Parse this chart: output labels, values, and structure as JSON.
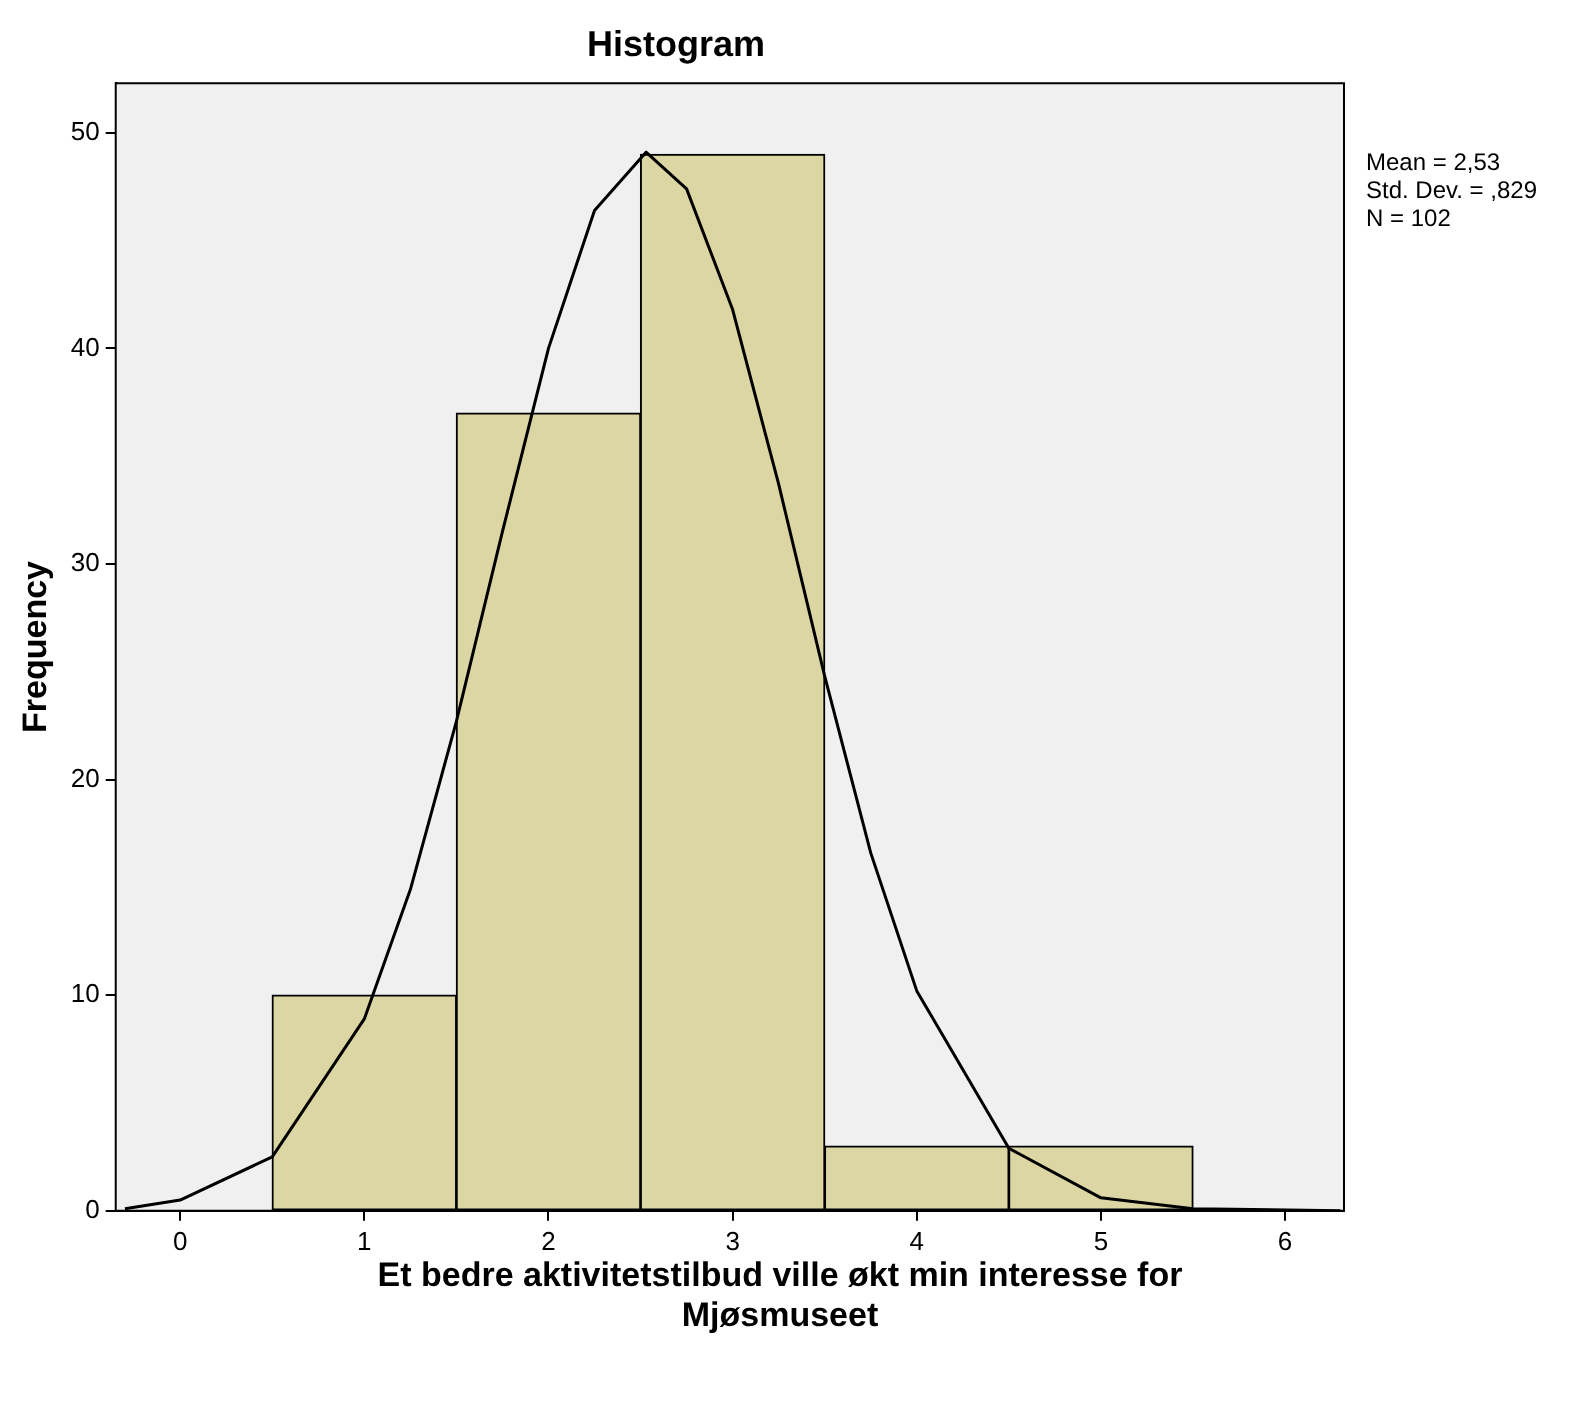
{
  "chart_data": {
    "type": "histogram",
    "title": "Histogram",
    "xlabel": "Et bedre aktivitetstilbud ville økt min interesse for Mjøsmuseet",
    "ylabel": "Frequency",
    "bins": [
      0.5,
      1.5,
      2.5,
      3.5,
      4.5,
      5.5
    ],
    "values": [
      10,
      37,
      49,
      3,
      3
    ],
    "color": "#dcd6a5",
    "series": [
      {
        "type": "line",
        "x": [
          -0.3,
          0,
          0.5,
          1,
          1.25,
          1.5,
          1.75,
          2,
          2.25,
          2.53,
          2.75,
          3,
          3.25,
          3.5,
          3.75,
          4,
          4.5,
          5,
          5.5,
          6.3
        ],
        "values": [
          0.1,
          0.5,
          2.5,
          8.9,
          14.9,
          22.7,
          31.5,
          40,
          46.4,
          49.1,
          47.4,
          41.8,
          33.7,
          24.8,
          16.6,
          10.2,
          2.9,
          0.6,
          0.1,
          0
        ],
        "color": "#000000"
      }
    ],
    "xlim": [
      -0.35,
      6.32
    ],
    "xticks": [
      0,
      1,
      2,
      3,
      4,
      5,
      6
    ],
    "ylim": [
      0,
      52.3
    ],
    "yticks": [
      0,
      10,
      20,
      30,
      40,
      50
    ],
    "legend": false,
    "annotations": [
      "Mean = 2,53",
      "Std. Dev. = ,829",
      "N = 102"
    ]
  }
}
